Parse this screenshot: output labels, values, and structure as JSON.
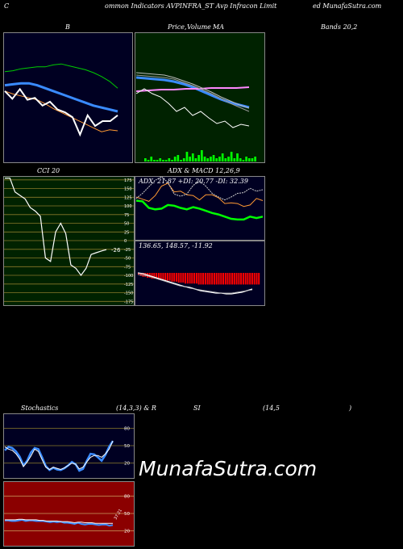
{
  "header": {
    "left": "C",
    "middle": "ommon Indicators AVPINFRA_ST Avp Infracon Limit",
    "right": "ed MunafaSutra.com"
  },
  "labels": {
    "bands": "B",
    "price_a": "Price,",
    "price_b": "Volume",
    "price_c": "MA",
    "bands_value": "Bands 20,2",
    "cci": "CCI 20",
    "adx_macd": "ADX  & MACD 12,26,9",
    "adx_values": "ADX: 21.87 +DI: 20.77 -DI: 32.39",
    "macd_values": "136.65,  148.57,  -11.92",
    "stoch_a": "Stochastics",
    "stoch_b": "(14,3,3) & R",
    "stoch_c": "SI",
    "stoch_d": "(14,5",
    "stoch_e": ")"
  },
  "watermark": "MunafaSutra.com",
  "colors": {
    "price_bg": "#002200",
    "bands_bg": "#000022",
    "cci_bg": "#002200",
    "adx_bg": "#000022",
    "rsi_bg": "#8b0000",
    "stoch_bg": "#000022",
    "accent_blue": "#3a8bff",
    "accent_green": "#00cc00"
  },
  "chart_data": [
    {
      "type": "line",
      "panel": "bollinger",
      "series": [
        {
          "color": "#00cc00",
          "values": [
            86,
            87,
            89,
            90,
            91,
            91,
            93,
            94,
            92,
            90,
            88,
            85,
            81,
            76,
            69
          ]
        },
        {
          "color": "#3a8bff",
          "values": [
            72,
            73,
            74,
            74,
            72,
            69,
            66,
            63,
            60,
            57,
            54,
            51,
            49,
            47,
            45
          ]
        },
        {
          "color": "#ff9933",
          "values": [
            66,
            63,
            61,
            59,
            57,
            53,
            48,
            44,
            40,
            36,
            32,
            28,
            24,
            26,
            25
          ]
        },
        {
          "color": "#ffffff",
          "values": [
            66,
            58,
            68,
            57,
            59,
            51,
            55,
            47,
            44,
            39,
            21,
            41,
            30,
            35,
            35,
            41
          ]
        }
      ]
    },
    {
      "type": "line",
      "panel": "price-volume-ma",
      "series": [
        {
          "color": "#3a8bff",
          "values": [
            72,
            71,
            70,
            69,
            67,
            64,
            60,
            55,
            50,
            45,
            41,
            38,
            35
          ]
        },
        {
          "color": "#ff88ff",
          "values": [
            55,
            56,
            57,
            57,
            58,
            58,
            59,
            59,
            59,
            60
          ]
        },
        {
          "color": "#bbbbbb",
          "values": [
            78,
            77,
            76,
            75,
            72,
            68,
            64,
            59,
            54,
            48,
            43,
            38,
            34
          ]
        },
        {
          "color": "#999999",
          "values": [
            75,
            74,
            73,
            72,
            70,
            66,
            62,
            57,
            52,
            46,
            40,
            35,
            30
          ]
        },
        {
          "color": "#ffffff",
          "values": [
            52,
            58,
            52,
            48,
            40,
            30,
            35,
            25,
            30,
            22,
            15,
            18,
            10,
            14,
            12
          ]
        }
      ],
      "volume": [
        2,
        1,
        3,
        1,
        1,
        2,
        1,
        1,
        2,
        1,
        3,
        4,
        1,
        2,
        6,
        3,
        5,
        2,
        4,
        7,
        3,
        2,
        3,
        4,
        2,
        3,
        5,
        2,
        3,
        6,
        2,
        5,
        2,
        1,
        3,
        2,
        2,
        3
      ]
    },
    {
      "type": "line",
      "panel": "cci",
      "ticks": [
        "175",
        "150",
        "125",
        "100",
        "75",
        "50",
        "25",
        "0",
        "-25",
        "-50",
        "-75",
        "-100",
        "-125",
        "-150",
        "-175"
      ],
      "value_label": "-26",
      "values": [
        180,
        180,
        140,
        130,
        120,
        95,
        85,
        70,
        -50,
        -60,
        25,
        50,
        20,
        -70,
        -80,
        -100,
        -80,
        -40,
        -35,
        -30,
        -26
      ]
    },
    {
      "type": "line",
      "panel": "adx",
      "series": [
        {
          "color": "#00ff00",
          "values": [
            55,
            54,
            45,
            43,
            44,
            49,
            48,
            45,
            43,
            46,
            44,
            41,
            38,
            36,
            33,
            30,
            29,
            29,
            33,
            31,
            33
          ]
        },
        {
          "color": "#ff9933",
          "values": [
            60,
            57,
            54,
            62,
            75,
            79,
            67,
            68,
            63,
            62,
            56,
            63,
            63,
            59,
            51,
            52,
            51,
            47,
            49,
            58,
            55
          ]
        },
        {
          "color": "#cccccc",
          "values": [
            58,
            65,
            74,
            83,
            88,
            80,
            64,
            61,
            64,
            76,
            82,
            75,
            65,
            60,
            56,
            60,
            65,
            66,
            72,
            68,
            70
          ]
        }
      ]
    },
    {
      "type": "bar",
      "panel": "macd",
      "values": [
        -2,
        -3,
        -4,
        -4,
        -5,
        -5,
        -6,
        -6,
        -6,
        -7,
        -7,
        -7,
        -8,
        -8,
        -8,
        -9,
        -9,
        -9,
        -10,
        -10,
        -10,
        -11,
        -11,
        -11,
        -11,
        -11,
        -11,
        -12,
        -12,
        -12,
        -12,
        -12,
        -12,
        -12,
        -12,
        -12,
        -12,
        -12,
        -12,
        -12,
        -12,
        -12,
        -12,
        -12,
        -12,
        -12,
        -12,
        -12,
        -12,
        -12,
        -12,
        -12,
        -12,
        -12,
        -12
      ]
    },
    {
      "type": "line",
      "panel": "stochastics",
      "ticks": [
        "80",
        "50",
        "20"
      ],
      "series": [
        {
          "color": "#3a8bff",
          "values": [
            42,
            48,
            46,
            40,
            31,
            16,
            24,
            38,
            46,
            44,
            30,
            15,
            8,
            12,
            9,
            8,
            11,
            16,
            22,
            18,
            7,
            10,
            24,
            36,
            35,
            30,
            24,
            34,
            48,
            58
          ]
        },
        {
          "color": "#ffffff",
          "values": [
            48,
            44,
            42,
            36,
            27,
            14,
            22,
            32,
            44,
            40,
            26,
            13,
            9,
            13,
            11,
            9,
            12,
            16,
            20,
            18,
            10,
            13,
            22,
            30,
            33,
            33,
            30,
            36,
            44,
            58
          ]
        }
      ]
    },
    {
      "type": "line",
      "panel": "rsi",
      "ticks": [
        "80",
        "50",
        "20"
      ],
      "value_label": "37.21",
      "series": [
        {
          "color": "#3a8bff",
          "values": [
            38,
            38,
            37,
            37,
            38,
            39,
            37,
            38,
            38,
            37,
            37,
            37,
            36,
            35,
            36,
            35,
            36,
            34,
            34,
            33,
            32,
            34,
            32,
            31,
            32,
            32,
            31,
            30,
            31,
            31,
            29,
            30
          ]
        },
        {
          "color": "#ffffff",
          "values": [
            39,
            39,
            39,
            39,
            40,
            40,
            39,
            39,
            39,
            39,
            38,
            38,
            37,
            37,
            37,
            37,
            36,
            36,
            36,
            35,
            34,
            35,
            35,
            34,
            34,
            34,
            33,
            33,
            33,
            33,
            33,
            33
          ]
        }
      ]
    }
  ]
}
